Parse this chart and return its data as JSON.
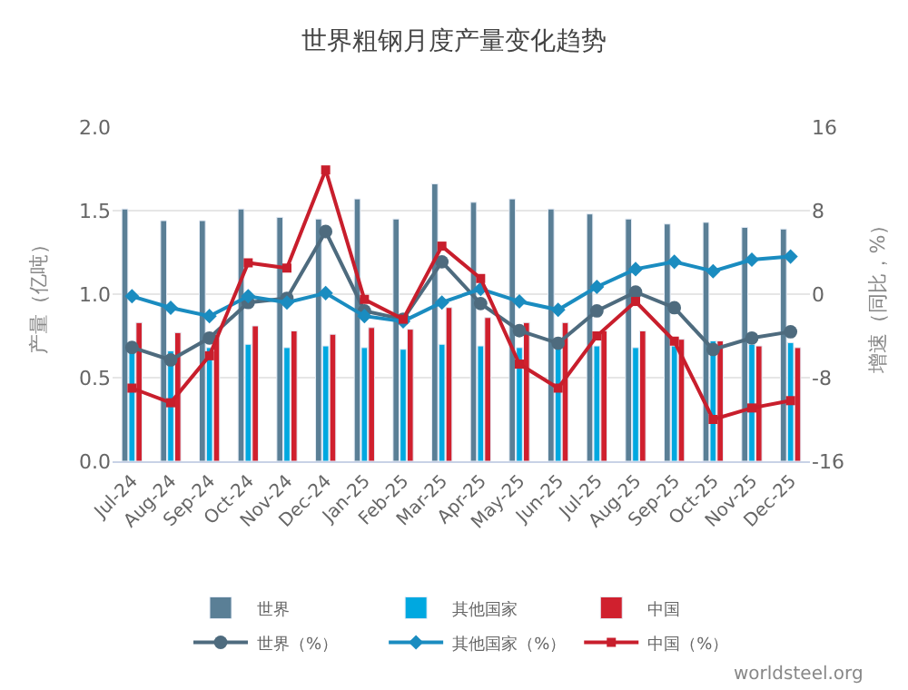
{
  "chart_data": {
    "type": "bar",
    "title": "世界粗钢月度产量变化趋势",
    "ylabel": "产量（亿吨）",
    "y2label": "增速（同比，%）",
    "categories": [
      "Jul-24",
      "Aug-24",
      "Sep-24",
      "Oct-24",
      "Nov-24",
      "Dec-24",
      "Jan-25",
      "Feb-25",
      "Mar-25",
      "Apr-25",
      "May-25",
      "Jun-25",
      "Jul-25",
      "Aug-25",
      "Sep-25",
      "Oct-25",
      "Nov-25",
      "Dec-25"
    ],
    "series": [
      {
        "name": "世界",
        "color": "#5a7f96",
        "values": [
          1.51,
          1.44,
          1.44,
          1.51,
          1.46,
          1.45,
          1.57,
          1.45,
          1.66,
          1.55,
          1.57,
          1.51,
          1.48,
          1.45,
          1.42,
          1.43,
          1.4,
          1.39
        ]
      },
      {
        "name": "其他国家",
        "color": "#00a8e0",
        "values": [
          0.67,
          0.66,
          0.68,
          0.7,
          0.68,
          0.69,
          0.68,
          0.67,
          0.7,
          0.69,
          0.68,
          0.68,
          0.69,
          0.68,
          0.69,
          0.72,
          0.7,
          0.71
        ]
      },
      {
        "name": "中国",
        "color": "#d0202e",
        "values": [
          0.83,
          0.77,
          0.76,
          0.81,
          0.78,
          0.76,
          0.8,
          0.79,
          0.92,
          0.86,
          0.83,
          0.83,
          0.78,
          0.78,
          0.73,
          0.72,
          0.69,
          0.68
        ]
      },
      {
        "name": "世界（%）",
        "type": "line",
        "axis": "y2",
        "marker": "circle",
        "color": "#4e6b7e",
        "values": [
          -5.1,
          -6.3,
          -4.2,
          -0.8,
          -0.4,
          6.0,
          -1.6,
          -2.4,
          3.1,
          -0.9,
          -3.5,
          -4.7,
          -1.6,
          0.2,
          -1.3,
          -5.3,
          -4.2,
          -3.6
        ]
      },
      {
        "name": "其他国家（%）",
        "type": "line",
        "axis": "y2",
        "marker": "diamond",
        "color": "#1a8cc0",
        "values": [
          -0.2,
          -1.3,
          -2.1,
          -0.2,
          -0.8,
          0.1,
          -2.1,
          -2.6,
          -0.8,
          0.5,
          -0.7,
          -1.5,
          0.7,
          2.4,
          3.1,
          2.2,
          3.3,
          3.6
        ]
      },
      {
        "name": "中国（%）",
        "type": "line",
        "axis": "y2",
        "marker": "square",
        "color": "#c81e2c",
        "values": [
          -9.0,
          -10.4,
          -5.9,
          3.0,
          2.5,
          11.9,
          -0.5,
          -2.4,
          4.6,
          1.5,
          -6.7,
          -9.0,
          -4.0,
          -0.7,
          -4.5,
          -12.0,
          -10.9,
          -10.2
        ]
      }
    ],
    "ylim": [
      0,
      2
    ],
    "yticks": [
      {
        "value": 0,
        "label": "0.0"
      },
      {
        "value": 0.5,
        "label": "0.5"
      },
      {
        "value": 1,
        "label": "1.0"
      },
      {
        "value": 1.5,
        "label": "1.5"
      },
      {
        "value": 2,
        "label": "2.0"
      }
    ],
    "y2lim": [
      -16,
      16
    ],
    "y2ticks": [
      -16,
      -8,
      0,
      8,
      16
    ],
    "grid": "y",
    "legend": "bottom",
    "annotations": [
      "worldsteel.org"
    ]
  }
}
